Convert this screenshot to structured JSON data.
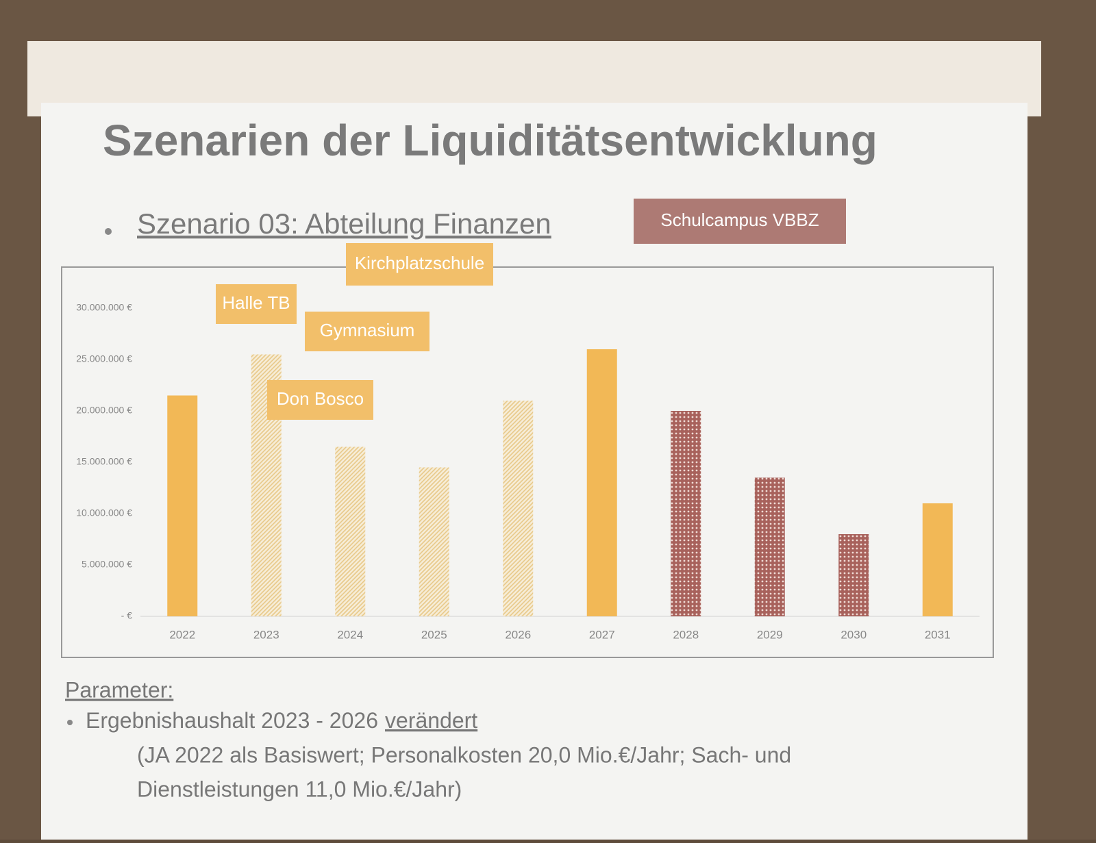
{
  "title": "Szenarien der Liquiditätsentwicklung",
  "subtitle": "Szenario 03: Abteilung Finanzen",
  "parameter": {
    "heading": "Parameter:",
    "line1": "Ergebnishaushalt 2023 - 2026",
    "line1_emphasis": "verändert",
    "line2": "(JA 2022 als Basiswert; Personalkosten 20,0 Mio.€/Jahr; Sach- und",
    "line3": "Dienstleistungen 11,0 Mio.€/Jahr)"
  },
  "chart_data": {
    "type": "bar",
    "categories": [
      "2022",
      "2023",
      "2024",
      "2025",
      "2026",
      "2027",
      "2028",
      "2029",
      "2030",
      "2031"
    ],
    "values": [
      21500000,
      25500000,
      16500000,
      14500000,
      21000000,
      26000000,
      20000000,
      13500000,
      8000000,
      11000000
    ],
    "colors": [
      "#f2b856",
      "#e8c98a",
      "#e8c98a",
      "#e8c98a",
      "#e8c98a",
      "#f2b856",
      "#a8625c",
      "#a8625c",
      "#a8625c",
      "#f2b856"
    ],
    "patterns": [
      "solid",
      "hatch",
      "hatch",
      "hatch",
      "hatch",
      "solid",
      "dots",
      "dots",
      "dots",
      "solid"
    ],
    "ylim": [
      0,
      30000000
    ],
    "yticks": [
      {
        "value": 0,
        "label": "- €"
      },
      {
        "value": 5000000,
        "label": "5.000.000 €"
      },
      {
        "value": 10000000,
        "label": "10.000.000 €"
      },
      {
        "value": 15000000,
        "label": "15.000.000 €"
      },
      {
        "value": 20000000,
        "label": "20.000.000 €"
      },
      {
        "value": 25000000,
        "label": "25.000.000 €"
      },
      {
        "value": 30000000,
        "label": "30.000.000 €"
      }
    ],
    "grid": false,
    "annotations": [
      {
        "text": "Halle TB",
        "color": "#f2bf6a"
      },
      {
        "text": "Kirchplatzschule",
        "color": "#f2bf6a"
      },
      {
        "text": "Gymnasium",
        "color": "#f2bf6a"
      },
      {
        "text": "Don Bosco",
        "color": "#f2bf6a"
      },
      {
        "text": "Schulcampus VBBZ",
        "color": "#ad7a74"
      }
    ]
  }
}
